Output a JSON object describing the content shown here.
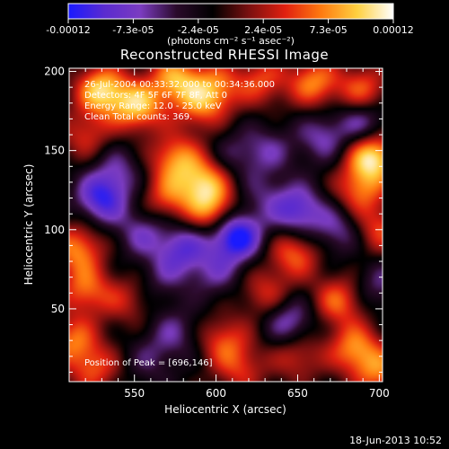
{
  "colorbar": {
    "ticks": [
      "-0.00012",
      "-7.3e-05",
      "-2.4e-05",
      "2.4e-05",
      "7.3e-05",
      "0.00012"
    ],
    "unit_label": "(photons cm⁻² s⁻¹ asec⁻²)",
    "colors": [
      "#1a1aff",
      "#5a2bd0",
      "#7b3cc0",
      "#2a0a2a",
      "#000000",
      "#7a1010",
      "#e02010",
      "#ff7a10",
      "#ffd040",
      "#ffffff"
    ]
  },
  "title": "Reconstructed RHESSI Image",
  "overlay": {
    "line1": "26-Jul-2004 00:33:32.000 to 00:34:36.000",
    "line2": "Detectors: 4F 5F 6F 7F 8F, Att 0",
    "line3": "Energy Range: 12.0 - 25.0 keV",
    "line4": "Clean     Total counts: 369.",
    "peak": "Position of Peak = [696,146]"
  },
  "timestamp": "18-Jun-2013 10:52",
  "chart_data": {
    "type": "heatmap",
    "title": "Reconstructed RHESSI Image",
    "xlabel": "Heliocentric X (arcsec)",
    "ylabel": "Heliocentric Y (arcsec)",
    "xlim": [
      510,
      702
    ],
    "ylim": [
      4,
      202
    ],
    "xticks": [
      550,
      600,
      650,
      700
    ],
    "yticks": [
      50,
      100,
      150,
      200
    ],
    "color_scale": [
      -0.00012,
      0.00012
    ],
    "peak_position": [
      696,
      146
    ],
    "features": [
      {
        "x": 530,
        "y": 188,
        "value": 0.00011
      },
      {
        "x": 552,
        "y": 178,
        "value": 0.0001
      },
      {
        "x": 575,
        "y": 195,
        "value": 9e-05
      },
      {
        "x": 600,
        "y": 190,
        "value": 7e-05
      },
      {
        "x": 590,
        "y": 178,
        "value": 6e-05
      },
      {
        "x": 628,
        "y": 194,
        "value": 6e-05
      },
      {
        "x": 660,
        "y": 193,
        "value": 8e-05
      },
      {
        "x": 690,
        "y": 188,
        "value": 7e-05
      },
      {
        "x": 520,
        "y": 160,
        "value": 5e-05
      },
      {
        "x": 575,
        "y": 145,
        "value": 8e-05
      },
      {
        "x": 592,
        "y": 130,
        "value": 9e-05
      },
      {
        "x": 598,
        "y": 112,
        "value": 8e-05
      },
      {
        "x": 570,
        "y": 120,
        "value": 6e-05
      },
      {
        "x": 696,
        "y": 146,
        "value": 0.00012
      },
      {
        "x": 688,
        "y": 125,
        "value": 7e-05
      },
      {
        "x": 700,
        "y": 100,
        "value": 6e-05
      },
      {
        "x": 648,
        "y": 85,
        "value": 7e-05
      },
      {
        "x": 630,
        "y": 60,
        "value": 5e-05
      },
      {
        "x": 515,
        "y": 88,
        "value": 8e-05
      },
      {
        "x": 520,
        "y": 62,
        "value": 7e-05
      },
      {
        "x": 545,
        "y": 55,
        "value": 4e-05
      },
      {
        "x": 512,
        "y": 30,
        "value": 7e-05
      },
      {
        "x": 525,
        "y": 12,
        "value": 6e-05
      },
      {
        "x": 605,
        "y": 30,
        "value": 6e-05
      },
      {
        "x": 615,
        "y": 12,
        "value": 5e-05
      },
      {
        "x": 675,
        "y": 55,
        "value": 7e-05
      },
      {
        "x": 685,
        "y": 25,
        "value": 8e-05
      },
      {
        "x": 700,
        "y": 10,
        "value": 7e-05
      },
      {
        "x": 650,
        "y": 20,
        "value": 5e-05
      },
      {
        "x": 530,
        "y": 120,
        "value": -9e-05
      },
      {
        "x": 612,
        "y": 96,
        "value": -0.00012
      },
      {
        "x": 540,
        "y": 138,
        "value": -4e-05
      },
      {
        "x": 555,
        "y": 98,
        "value": -5e-05
      },
      {
        "x": 580,
        "y": 88,
        "value": -7e-05
      },
      {
        "x": 650,
        "y": 112,
        "value": -8e-05
      },
      {
        "x": 675,
        "y": 100,
        "value": -5e-05
      },
      {
        "x": 665,
        "y": 158,
        "value": -5e-05
      },
      {
        "x": 690,
        "y": 168,
        "value": -6e-05
      },
      {
        "x": 632,
        "y": 150,
        "value": -4e-05
      },
      {
        "x": 612,
        "y": 148,
        "value": -3e-05
      },
      {
        "x": 568,
        "y": 70,
        "value": -3e-05
      },
      {
        "x": 600,
        "y": 72,
        "value": -4e-05
      },
      {
        "x": 645,
        "y": 42,
        "value": -6e-05
      },
      {
        "x": 575,
        "y": 35,
        "value": -4e-05
      },
      {
        "x": 560,
        "y": 18,
        "value": -3e-05
      },
      {
        "x": 630,
        "y": 122,
        "value": -3e-05
      },
      {
        "x": 700,
        "y": 65,
        "value": -4e-05
      }
    ]
  }
}
